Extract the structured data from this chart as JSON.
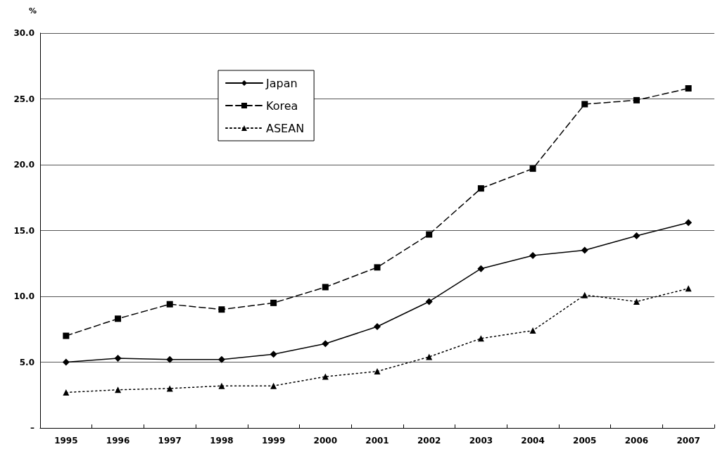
{
  "chart_data": {
    "type": "line",
    "ylabel": "%",
    "categories": [
      "1995",
      "1996",
      "1997",
      "1998",
      "1999",
      "2000",
      "2001",
      "2002",
      "2003",
      "2004",
      "2005",
      "2006",
      "2007"
    ],
    "series": [
      {
        "name": "Japan",
        "color": "#000000",
        "marker": "diamond",
        "line_style": "solid",
        "values": [
          5.0,
          5.3,
          5.2,
          5.2,
          5.6,
          6.4,
          7.7,
          9.6,
          12.1,
          13.1,
          13.5,
          14.6,
          15.6
        ]
      },
      {
        "name": "Korea",
        "color": "#000000",
        "marker": "square",
        "line_style": "dashed",
        "values": [
          7.0,
          8.3,
          9.4,
          9.0,
          9.5,
          10.7,
          12.2,
          14.7,
          18.2,
          19.7,
          24.6,
          24.9,
          25.8
        ]
      },
      {
        "name": "ASEAN",
        "color": "#000000",
        "marker": "triangle",
        "line_style": "dotted",
        "values": [
          2.7,
          2.9,
          3.0,
          3.2,
          3.2,
          3.9,
          4.3,
          5.4,
          6.8,
          7.4,
          10.1,
          9.6,
          10.6
        ]
      }
    ],
    "ylim": [
      0,
      30
    ],
    "yticks": [
      {
        "value": 0,
        "label": "–"
      },
      {
        "value": 5,
        "label": "5.0"
      },
      {
        "value": 10,
        "label": "10.0"
      },
      {
        "value": 15,
        "label": "15.0"
      },
      {
        "value": 20,
        "label": "20.0"
      },
      {
        "value": 25,
        "label": "25.0"
      },
      {
        "value": 30,
        "label": "30.0"
      }
    ],
    "grid": "y",
    "legend": "top left"
  }
}
